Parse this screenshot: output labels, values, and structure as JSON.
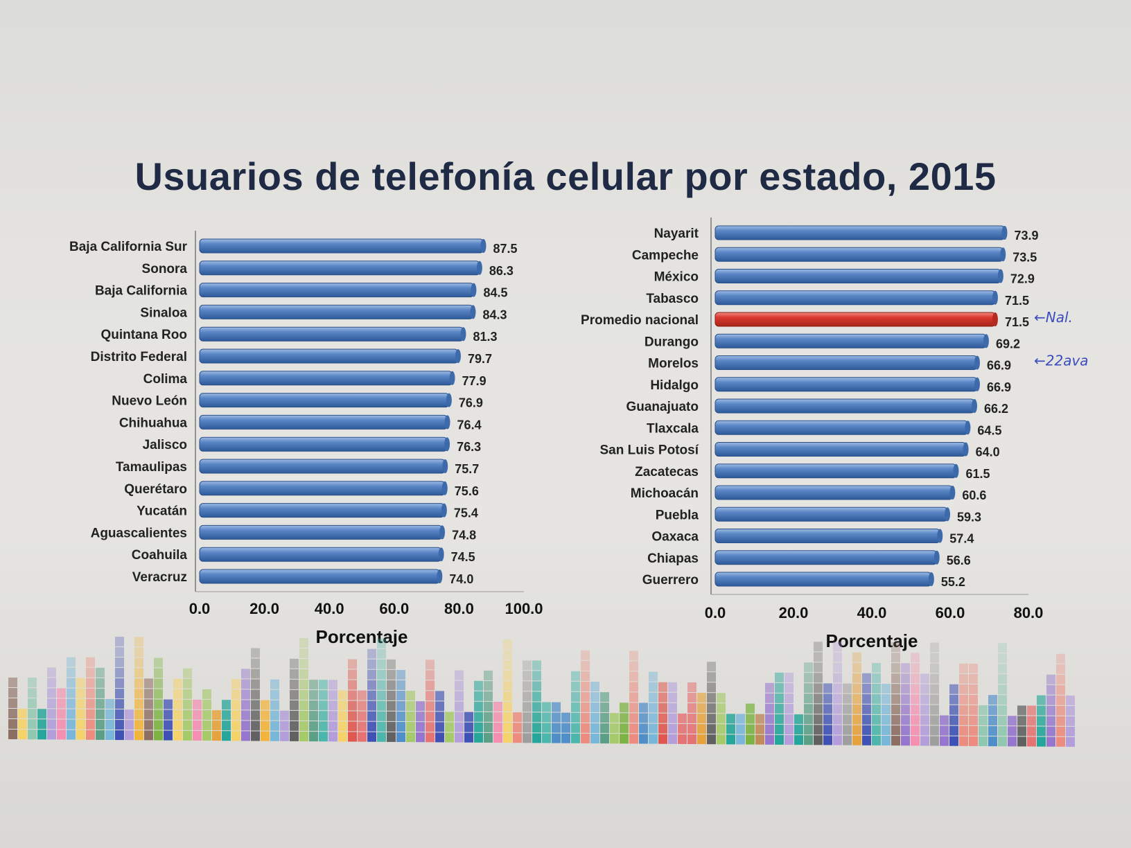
{
  "title": "Usuarios de telefonía celular por estado, 2015",
  "colors": {
    "bar": "#4f7cbf",
    "bar_dark": "#2f5a9a",
    "highlight": "#d8352a",
    "text": "#222222",
    "title": "#1f2a44",
    "annotation": "#3b4cc0"
  },
  "chart_data": [
    {
      "type": "bar",
      "orientation": "horizontal",
      "categories": [
        "Baja California Sur",
        "Sonora",
        "Baja California",
        "Sinaloa",
        "Quintana Roo",
        "Distrito Federal",
        "Colima",
        "Nuevo León",
        "Chihuahua",
        "Jalisco",
        "Tamaulipas",
        "Querétaro",
        "Yucatán",
        "Aguascalientes",
        "Coahuila",
        "Veracruz"
      ],
      "values": [
        87.5,
        86.3,
        84.5,
        84.3,
        81.3,
        79.7,
        77.9,
        76.9,
        76.4,
        76.3,
        75.7,
        75.6,
        75.4,
        74.8,
        74.5,
        74.0
      ],
      "value_labels": [
        "87.5",
        "86.3",
        "84.5",
        "84.3",
        "81.3",
        "79.7",
        "77.9",
        "76.9",
        "76.4",
        "76.3",
        "75.7",
        "75.6",
        "75.4",
        "74.8",
        "74.5",
        "74.0"
      ],
      "xlabel": "Porcentaje",
      "xlim": [
        0,
        100
      ],
      "xticks": [
        "0.0",
        "20.0",
        "40.0",
        "60.0",
        "80.0",
        "100.0"
      ],
      "grid": false,
      "highlight": []
    },
    {
      "type": "bar",
      "orientation": "horizontal",
      "categories": [
        "Nayarit",
        "Campeche",
        "México",
        "Tabasco",
        "Promedio nacional",
        "Durango",
        "Morelos",
        "Hidalgo",
        "Guanajuato",
        "Tlaxcala",
        "San Luis Potosí",
        "Zacatecas",
        "Michoacán",
        "Puebla",
        "Oaxaca",
        "Chiapas",
        "Guerrero"
      ],
      "values": [
        73.9,
        73.5,
        72.9,
        71.5,
        71.5,
        69.2,
        66.9,
        66.9,
        66.2,
        64.5,
        64.0,
        61.5,
        60.6,
        59.3,
        57.4,
        56.6,
        55.2
      ],
      "value_labels": [
        "73.9",
        "73.5",
        "72.9",
        "71.5",
        "71.5",
        "69.2",
        "66.9",
        "66.9",
        "66.2",
        "64.5",
        "64.0",
        "61.5",
        "60.6",
        "59.3",
        "57.4",
        "56.6",
        "55.2"
      ],
      "xlabel": "Porcentaje",
      "xlim": [
        0,
        80
      ],
      "xticks": [
        "0.0",
        "20.0",
        "40.0",
        "60.0",
        "80.0"
      ],
      "grid": false,
      "highlight": [
        "Promedio nacional"
      ]
    }
  ],
  "annotations": [
    {
      "text": "←Nal.",
      "target": "Promedio nacional"
    },
    {
      "text": "←22ava",
      "target": "Morelos"
    }
  ]
}
